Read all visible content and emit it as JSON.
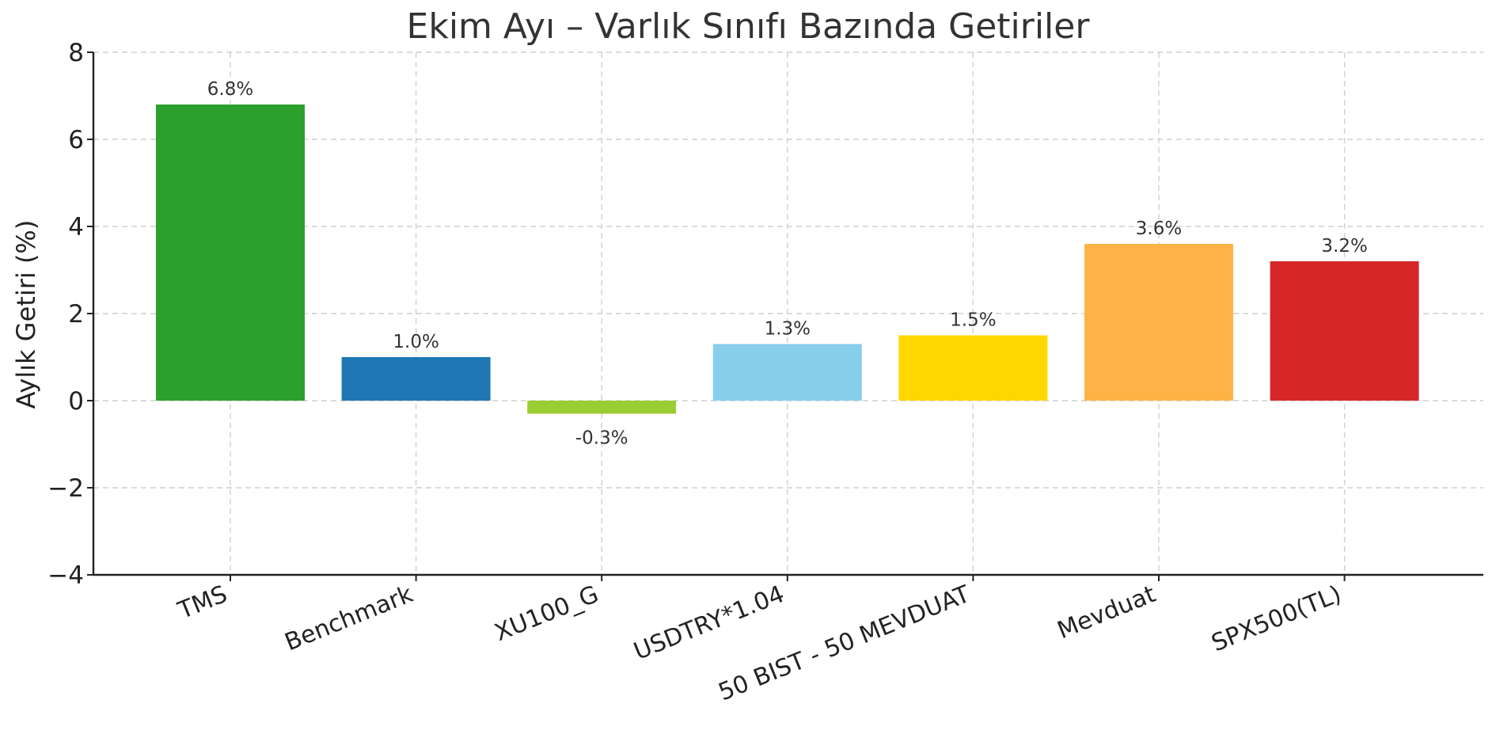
{
  "chart_data": {
    "type": "bar",
    "title": "Ekim Ayı – Varlık Sınıfı Bazında Getiriler",
    "ylabel": "Aylık Getiri (%)",
    "xlabel": "",
    "categories": [
      "TMS",
      "Benchmark",
      "XU100_G",
      "USDTRY*1.04",
      "50 BIST - 50 MEVDUAT",
      "Mevduat",
      "SPX500(TL)"
    ],
    "values": [
      6.8,
      1.0,
      -0.3,
      1.3,
      1.5,
      3.6,
      3.2
    ],
    "data_labels": [
      "6.8%",
      "1.0%",
      "-0.3%",
      "1.3%",
      "1.5%",
      "3.6%",
      "3.2%"
    ],
    "colors": [
      "#2ca02c",
      "#1f77b4",
      "#9acd32",
      "#87ceeb",
      "#ffd700",
      "#ffb347",
      "#d62728"
    ],
    "ylim": [
      -4,
      8
    ],
    "yticks": [
      -4,
      -2,
      0,
      2,
      4,
      6,
      8
    ],
    "ytick_labels": [
      "−4",
      "−2",
      "0",
      "2",
      "4",
      "6",
      "8"
    ],
    "grid": true,
    "x_tick_rotation": 22
  }
}
